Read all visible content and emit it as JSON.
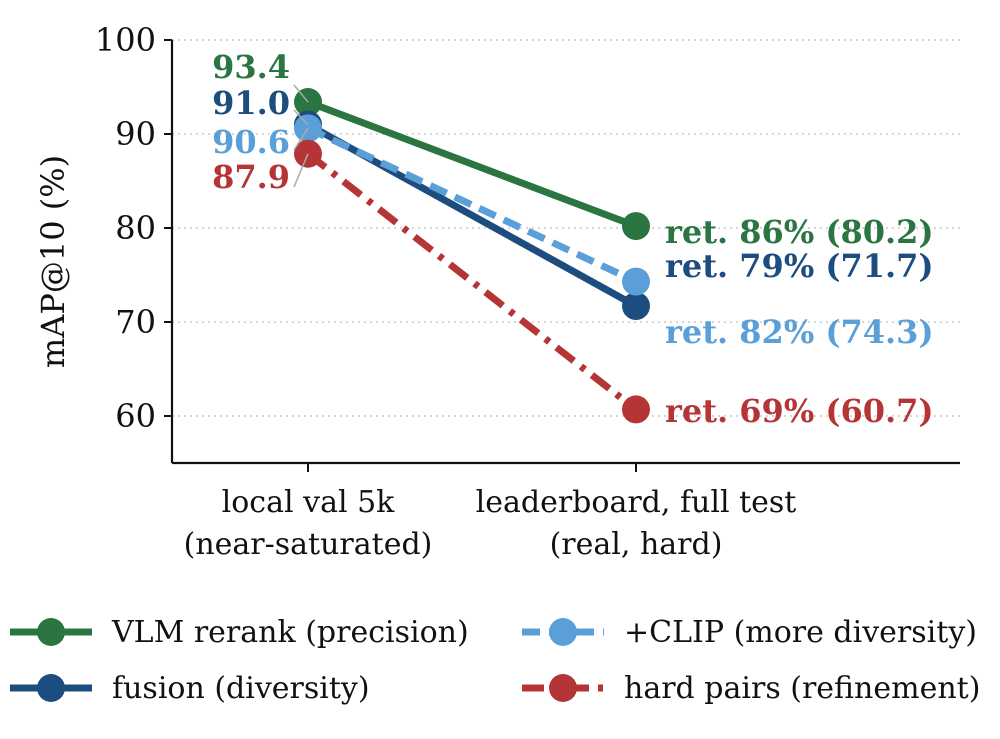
{
  "chart_data": {
    "type": "line",
    "ylabel": "mAP@10 (%)",
    "xlabel": "",
    "ylim": [
      55.0,
      100.0
    ],
    "yticks": [
      60,
      70,
      80,
      90,
      100
    ],
    "grid": "horizontal dotted",
    "legend_position": "bottom",
    "categories": [
      [
        "local val 5k",
        "(near-saturated)"
      ],
      [
        "leaderboard, full test",
        "(real, hard)"
      ]
    ],
    "series": [
      {
        "name": "VLM rerank (precision)",
        "color": "#2a7541",
        "linestyle": "solid",
        "values": [
          93.4,
          80.2
        ],
        "start_label": "93.4",
        "end_label": "ret. 86% (80.2)"
      },
      {
        "name": "fusion (diversity)",
        "color": "#1d4c7e",
        "linestyle": "solid",
        "values": [
          91.0,
          71.7
        ],
        "start_label": "91.0",
        "end_label": "ret. 79% (71.7)"
      },
      {
        "name": "+CLIP (more diversity)",
        "color": "#5b9fd9",
        "linestyle": "dashed",
        "values": [
          90.6,
          74.3
        ],
        "start_label": "90.6",
        "end_label": "ret. 82% (74.3)"
      },
      {
        "name": "hard pairs (refinement)",
        "color": "#b53536",
        "linestyle": "dashdot",
        "values": [
          87.9,
          60.7
        ],
        "start_label": "87.9",
        "end_label": "ret. 69% (60.7)"
      }
    ],
    "legend_order": [
      0,
      2,
      1,
      3
    ]
  }
}
